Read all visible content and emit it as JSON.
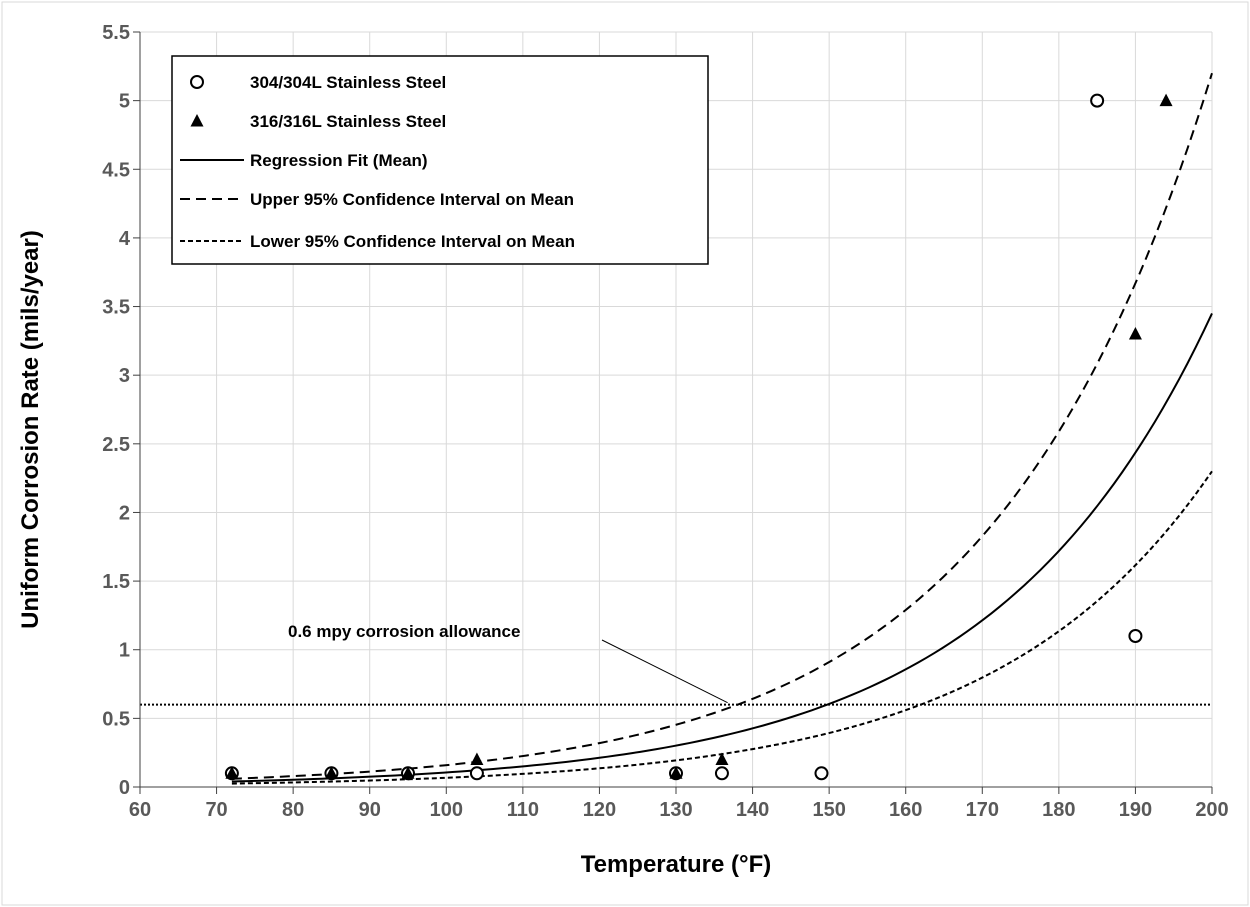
{
  "chart_data": {
    "type": "scatter",
    "title": "",
    "xlabel": "Temperature (°F)",
    "ylabel": "Uniform Corrosion Rate (mils/year)",
    "xlim": [
      60,
      200
    ],
    "ylim": [
      0,
      5.5
    ],
    "x_ticks": [
      "60",
      "70",
      "80",
      "90",
      "100",
      "110",
      "120",
      "130",
      "140",
      "150",
      "160",
      "170",
      "180",
      "190",
      "200"
    ],
    "y_ticks": [
      "0",
      "0.5",
      "1",
      "1.5",
      "2",
      "2.5",
      "3",
      "3.5",
      "4",
      "4.5",
      "5",
      "5.5"
    ],
    "grid": true,
    "legend_position": "top-left",
    "legend": [
      {
        "label": "304/304L Stainless Steel",
        "symbol": "circle"
      },
      {
        "label": "316/316L Stainless Steel",
        "symbol": "triangle"
      },
      {
        "label": "Regression Fit (Mean)",
        "symbol": "solid"
      },
      {
        "label": "Upper 95% Confidence Interval on Mean",
        "symbol": "dash"
      },
      {
        "label": "Lower 95% Confidence Interval on Mean",
        "symbol": "shortdash"
      }
    ],
    "series": [
      {
        "name": "304/304L Stainless Steel",
        "marker": "circle",
        "points": [
          [
            72,
            0.1
          ],
          [
            85,
            0.1
          ],
          [
            95,
            0.1
          ],
          [
            104,
            0.1
          ],
          [
            130,
            0.1
          ],
          [
            136,
            0.1
          ],
          [
            149,
            0.1
          ],
          [
            185,
            5.0
          ],
          [
            190,
            1.1
          ]
        ]
      },
      {
        "name": "316/316L Stainless Steel",
        "marker": "triangle",
        "points": [
          [
            72,
            0.1
          ],
          [
            85,
            0.1
          ],
          [
            95,
            0.1
          ],
          [
            104,
            0.2
          ],
          [
            130,
            0.1
          ],
          [
            136,
            0.2
          ],
          [
            190,
            3.3
          ],
          [
            194,
            5.0
          ]
        ]
      },
      {
        "name": "Regression Fit (Mean)",
        "style": "solid",
        "curve": {
          "x_start": 72,
          "x_end": 200,
          "y_at_start": 0.04,
          "y_at_end": 3.45
        }
      },
      {
        "name": "Upper 95% Confidence Interval on Mean",
        "style": "dash",
        "curve": {
          "x_start": 72,
          "x_end": 200,
          "y_at_start": 0.06,
          "y_at_end": 5.2
        }
      },
      {
        "name": "Lower 95% Confidence Interval on Mean",
        "style": "shortdash",
        "curve": {
          "x_start": 72,
          "x_end": 200,
          "y_at_start": 0.025,
          "y_at_end": 2.3
        }
      }
    ],
    "reference_line": {
      "y": 0.6,
      "style": "dotted"
    },
    "annotation": {
      "text": "0.6 mpy corrosion allowance",
      "target_x": 137,
      "target_y": 0.6
    }
  }
}
